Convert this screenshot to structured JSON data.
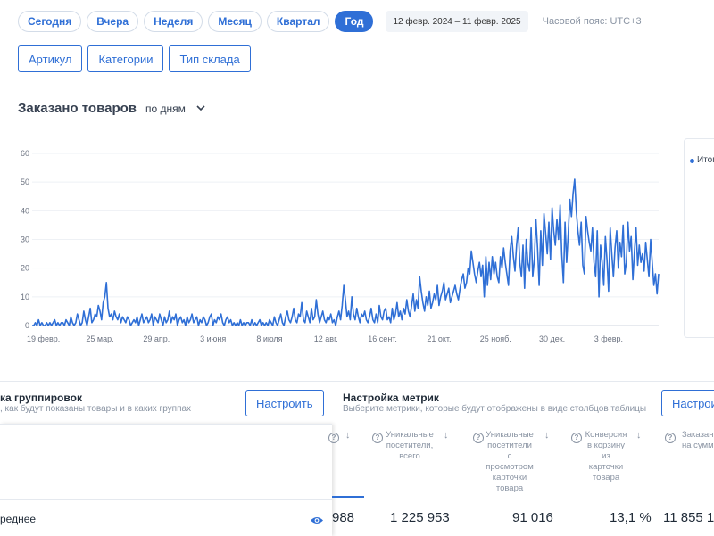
{
  "period_tabs": [
    {
      "label": "Сегодня",
      "active": false
    },
    {
      "label": "Вчера",
      "active": false
    },
    {
      "label": "Неделя",
      "active": false
    },
    {
      "label": "Месяц",
      "active": false
    },
    {
      "label": "Квартал",
      "active": false
    },
    {
      "label": "Год",
      "active": true
    }
  ],
  "date_range": "12 февр. 2024  –  11 февр. 2025",
  "timezone": "Часовой пояс: UTC+3",
  "grouping_buttons": [
    "Артикул",
    "Категории",
    "Тип склада"
  ],
  "chart_section": {
    "title": "Заказано товаров",
    "granularity": "по дням",
    "legend_label": "Итог"
  },
  "chart_data": {
    "type": "line",
    "title": "",
    "xlabel": "",
    "ylabel": "",
    "ylim": [
      0,
      60
    ],
    "yticks": [
      0,
      10,
      20,
      30,
      40,
      50,
      60
    ],
    "xticks": [
      "19 февр.",
      "25 мар.",
      "29 апр.",
      "3 июня",
      "8 июля",
      "12 авг.",
      "16 сент.",
      "21 окт.",
      "25 нояб.",
      "30 дек.",
      "3 февр."
    ],
    "grid": true,
    "color": "#2f6fd6",
    "series": [
      {
        "name": "Итог",
        "x_start": "2024-02-12",
        "values": [
          0,
          0,
          1,
          0,
          2,
          0,
          1,
          0,
          0,
          1,
          0,
          1,
          0,
          1,
          2,
          0,
          1,
          0,
          1,
          1,
          0,
          2,
          1,
          0,
          3,
          1,
          0,
          1,
          4,
          2,
          0,
          1,
          5,
          2,
          0,
          3,
          6,
          1,
          2,
          4,
          3,
          7,
          5,
          2,
          8,
          10,
          15,
          6,
          3,
          4,
          2,
          5,
          3,
          2,
          4,
          1,
          3,
          2,
          1,
          3,
          2,
          0,
          1,
          2,
          1,
          3,
          0,
          2,
          4,
          1,
          2,
          3,
          1,
          2,
          4,
          0,
          3,
          2,
          1,
          4,
          2,
          0,
          3,
          1,
          2,
          5,
          1,
          3,
          2,
          4,
          0,
          2,
          3,
          1,
          2,
          0,
          3,
          1,
          2,
          4,
          1,
          2,
          3,
          0,
          2,
          1,
          3,
          2,
          0,
          1,
          3,
          4,
          0,
          2,
          1,
          3,
          2,
          4,
          1,
          0,
          2,
          3,
          1,
          2,
          0,
          1,
          0,
          1,
          0,
          2,
          0,
          1,
          0,
          1,
          1,
          0,
          2,
          0,
          1,
          0,
          1,
          2,
          0,
          1,
          0,
          1,
          0,
          2,
          1,
          0,
          3,
          1,
          0,
          2,
          4,
          1,
          0,
          3,
          5,
          2,
          1,
          3,
          6,
          2,
          1,
          4,
          3,
          8,
          2,
          1,
          5,
          3,
          1,
          6,
          2,
          3,
          9,
          4,
          1,
          3,
          5,
          2,
          1,
          3,
          2,
          4,
          1,
          2,
          0,
          3,
          5,
          2,
          7,
          14,
          9,
          3,
          5,
          2,
          10,
          4,
          2,
          6,
          3,
          1,
          4,
          3,
          5,
          2,
          1,
          3,
          6,
          2,
          1,
          4,
          1,
          7,
          3,
          2,
          5,
          6,
          2,
          3,
          1,
          6,
          2,
          4,
          8,
          3,
          5,
          2,
          6,
          4,
          9,
          5,
          3,
          7,
          11,
          5,
          9,
          6,
          17,
          12,
          8,
          5,
          10,
          7,
          12,
          6,
          8,
          11,
          9,
          14,
          7,
          10,
          12,
          15,
          9,
          11,
          13,
          8,
          10,
          12,
          14,
          11,
          9,
          13,
          16,
          18,
          13,
          15,
          20,
          18,
          26,
          22,
          18,
          15,
          19,
          22,
          17,
          21,
          10,
          24,
          14,
          22,
          16,
          24,
          18,
          22,
          17,
          15,
          24,
          20,
          27,
          22,
          18,
          14,
          26,
          31,
          24,
          19,
          28,
          34,
          22,
          17,
          28,
          13,
          30,
          22,
          19,
          34,
          17,
          23,
          37,
          27,
          14,
          33,
          21,
          39,
          32,
          25,
          36,
          23,
          41,
          33,
          28,
          37,
          30,
          42,
          25,
          15,
          36,
          22,
          32,
          44,
          38,
          46,
          51,
          40,
          33,
          28,
          36,
          21,
          18,
          38,
          33,
          29,
          26,
          34,
          22,
          17,
          33,
          10,
          28,
          22,
          14,
          31,
          23,
          12,
          34,
          25,
          17,
          27,
          33,
          20,
          29,
          24,
          35,
          18,
          22,
          36,
          26,
          31,
          16,
          26,
          34,
          21,
          28,
          22,
          25,
          19,
          29,
          23,
          17,
          30,
          22,
          14,
          18,
          11,
          18
        ]
      }
    ]
  },
  "grouping_panel": {
    "title": "ка группировок",
    "description": ", как будут показаны товары и в каких группах",
    "button": "Настроить",
    "row_label": "реднее"
  },
  "metrics_panel": {
    "title": "Настройка метрик",
    "description": "Выберите метрики, которые будут отображены в виде столбцов таблицы",
    "button": "Настрои"
  },
  "table": {
    "columns": [
      {
        "lines": [
          "Уникальные",
          "посетители,",
          "всего"
        ]
      },
      {
        "lines": [
          "Уникальные",
          "посетители",
          "с",
          "просмотром",
          "карточки",
          "товара"
        ]
      },
      {
        "lines": [
          "Конверсия",
          "в корзину",
          "из",
          "карточки",
          "товара"
        ]
      },
      {
        "lines": [
          "Заказан",
          "на сумм"
        ]
      }
    ],
    "values": [
      "988",
      "1 225 953",
      "91 016",
      "13,1 %",
      "11 855 1"
    ]
  }
}
